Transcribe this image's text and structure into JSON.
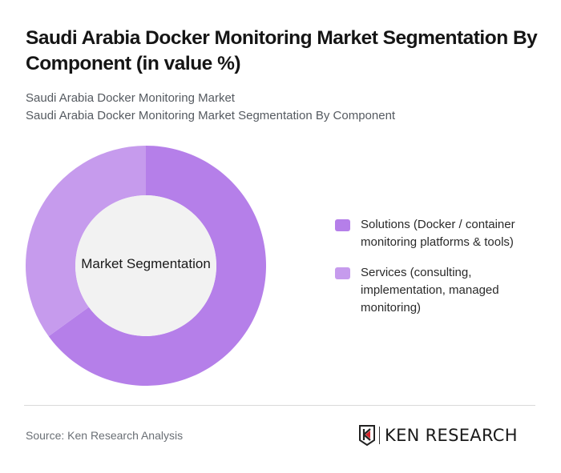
{
  "header": {
    "title": "Saudi Arabia Docker Monitoring Market Segmentation By Component (in value %)",
    "subtitle_line1": "Saudi Arabia Docker Monitoring Market",
    "subtitle_line2": "Saudi Arabia Docker Monitoring Market Segmentation By Component"
  },
  "chart_data": {
    "type": "pie",
    "variant": "donut",
    "title": "Saudi Arabia Docker Monitoring Market Segmentation By Component (in value %)",
    "center_label": "Market Segmentation",
    "categories": [
      "Solutions (Docker / container monitoring platforms & tools)",
      "Services (consulting, implementation, managed monitoring)"
    ],
    "values": [
      65,
      35
    ],
    "colors": [
      "#b57fe9",
      "#c69bed"
    ],
    "legend_position": "right",
    "unit": "%"
  },
  "legend": {
    "items": [
      {
        "label": "Solutions (Docker / container monitoring platforms & tools)",
        "color": "#b57fe9"
      },
      {
        "label": "Services (consulting, implementation, managed monitoring)",
        "color": "#c69bed"
      }
    ]
  },
  "footer": {
    "source": "Source: Ken Research Analysis",
    "logo_text": "KEN RESEARCH"
  }
}
